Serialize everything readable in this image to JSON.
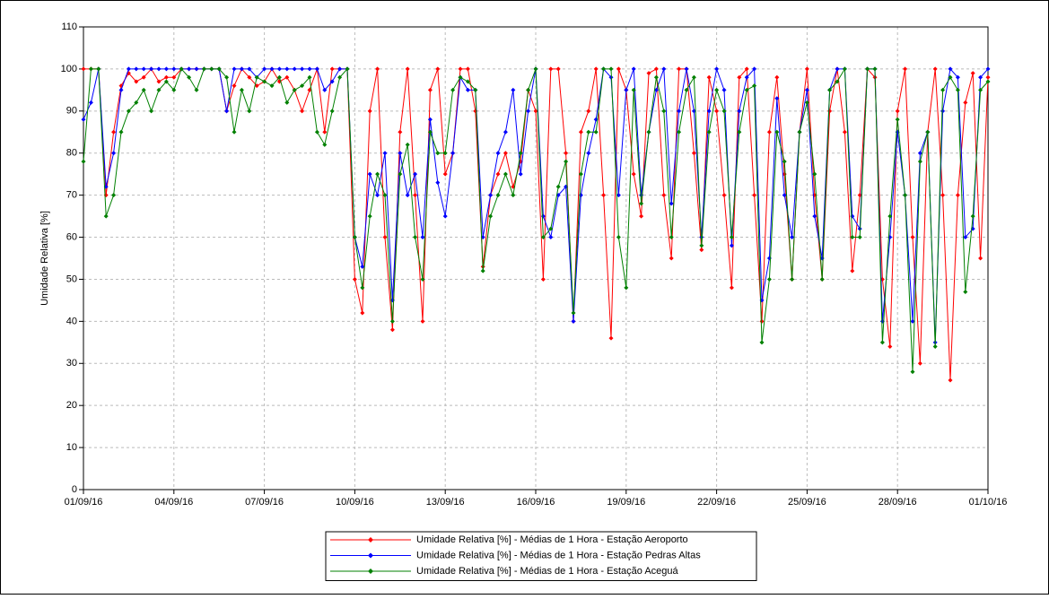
{
  "chart_data": {
    "type": "line",
    "y_label": "Umidade Relativa [%]",
    "xlim": [
      0,
      720
    ],
    "xticks": [
      {
        "value": 0,
        "label": "01/09/16"
      },
      {
        "value": 72,
        "label": "04/09/16"
      },
      {
        "value": 144,
        "label": "07/09/16"
      },
      {
        "value": 216,
        "label": "10/09/16"
      },
      {
        "value": 288,
        "label": "13/09/16"
      },
      {
        "value": 360,
        "label": "16/09/16"
      },
      {
        "value": 432,
        "label": "19/09/16"
      },
      {
        "value": 504,
        "label": "22/09/16"
      },
      {
        "value": 576,
        "label": "25/09/16"
      },
      {
        "value": 648,
        "label": "28/09/16"
      },
      {
        "value": 720,
        "label": "01/10/16"
      }
    ],
    "ylim": [
      0,
      110
    ],
    "yticks": [
      0,
      10,
      20,
      30,
      40,
      50,
      60,
      70,
      80,
      90,
      100,
      110
    ],
    "grid": true,
    "legend": "bottom",
    "x": [
      0,
      6,
      12,
      18,
      24,
      30,
      36,
      42,
      48,
      54,
      60,
      66,
      72,
      78,
      84,
      90,
      96,
      102,
      108,
      114,
      120,
      126,
      132,
      138,
      144,
      150,
      156,
      162,
      168,
      174,
      180,
      186,
      192,
      198,
      204,
      210,
      216,
      222,
      228,
      234,
      240,
      246,
      252,
      258,
      264,
      270,
      276,
      282,
      288,
      294,
      300,
      306,
      312,
      318,
      324,
      330,
      336,
      342,
      348,
      354,
      360,
      366,
      372,
      378,
      384,
      390,
      396,
      402,
      408,
      414,
      420,
      426,
      432,
      438,
      444,
      450,
      456,
      462,
      468,
      474,
      480,
      486,
      492,
      498,
      504,
      510,
      516,
      522,
      528,
      534,
      540,
      546,
      552,
      558,
      564,
      570,
      576,
      582,
      588,
      594,
      600,
      606,
      612,
      618,
      624,
      630,
      636,
      642,
      648,
      654,
      660,
      666,
      672,
      678,
      684,
      690,
      696,
      702,
      708,
      714,
      720
    ],
    "series": [
      {
        "name": "Umidade Relativa [%] - Médias de 1 Hora - Estação Aeroporto",
        "color": "#ff0000",
        "values": [
          100,
          100,
          100,
          70,
          85,
          96,
          99,
          97,
          98,
          100,
          97,
          98,
          98,
          100,
          100,
          100,
          100,
          100,
          100,
          90,
          96,
          100,
          98,
          96,
          97,
          100,
          97,
          98,
          95,
          90,
          95,
          100,
          85,
          100,
          100,
          100,
          50,
          42,
          90,
          100,
          60,
          38,
          85,
          100,
          70,
          40,
          95,
          100,
          75,
          80,
          100,
          100,
          90,
          53,
          70,
          75,
          80,
          72,
          78,
          95,
          90,
          50,
          100,
          100,
          80,
          40,
          85,
          90,
          100,
          70,
          36,
          100,
          95,
          75,
          65,
          99,
          100,
          70,
          55,
          100,
          100,
          80,
          57,
          98,
          90,
          70,
          48,
          98,
          100,
          70,
          40,
          85,
          98,
          75,
          50,
          85,
          100,
          70,
          50,
          90,
          100,
          85,
          52,
          70,
          100,
          98,
          50,
          34,
          90,
          100,
          60,
          30,
          85,
          100,
          70,
          26,
          70,
          92,
          99,
          55,
          98
        ]
      },
      {
        "name": "Umidade Relativa [%] - Médias de 1 Hora - Estação Pedras Altas",
        "color": "#0000ff",
        "values": [
          88,
          92,
          100,
          72,
          80,
          95,
          100,
          100,
          100,
          100,
          100,
          100,
          100,
          100,
          100,
          100,
          100,
          100,
          100,
          90,
          100,
          100,
          100,
          98,
          100,
          100,
          100,
          100,
          100,
          100,
          100,
          100,
          95,
          97,
          100,
          100,
          60,
          53,
          75,
          70,
          80,
          45,
          80,
          70,
          75,
          60,
          88,
          73,
          65,
          80,
          98,
          95,
          95,
          60,
          70,
          80,
          85,
          95,
          75,
          90,
          100,
          65,
          60,
          70,
          72,
          40,
          70,
          80,
          88,
          100,
          98,
          70,
          95,
          100,
          70,
          85,
          95,
          100,
          68,
          90,
          100,
          90,
          60,
          90,
          100,
          95,
          58,
          90,
          98,
          100,
          45,
          55,
          93,
          70,
          60,
          85,
          95,
          65,
          55,
          95,
          100,
          100,
          65,
          62,
          100,
          100,
          40,
          60,
          85,
          70,
          40,
          80,
          85,
          35,
          90,
          100,
          98,
          60,
          62,
          98,
          100
        ]
      },
      {
        "name": "Umidade Relativa [%] - Médias de 1 Hora - Estação Aceguá",
        "color": "#008000",
        "values": [
          78,
          100,
          100,
          65,
          70,
          85,
          90,
          92,
          95,
          90,
          95,
          97,
          95,
          100,
          98,
          95,
          100,
          100,
          100,
          98,
          85,
          95,
          90,
          98,
          97,
          96,
          98,
          92,
          95,
          96,
          98,
          85,
          82,
          90,
          98,
          100,
          60,
          48,
          65,
          75,
          70,
          40,
          75,
          82,
          60,
          50,
          85,
          80,
          80,
          95,
          98,
          97,
          95,
          52,
          65,
          70,
          75,
          70,
          80,
          95,
          100,
          60,
          62,
          72,
          78,
          42,
          75,
          85,
          85,
          100,
          100,
          60,
          48,
          95,
          68,
          85,
          98,
          90,
          60,
          85,
          95,
          98,
          58,
          85,
          95,
          90,
          60,
          85,
          95,
          96,
          35,
          50,
          85,
          78,
          50,
          85,
          92,
          75,
          50,
          95,
          97,
          100,
          60,
          60,
          100,
          100,
          35,
          65,
          88,
          70,
          28,
          78,
          85,
          34,
          95,
          98,
          95,
          47,
          65,
          95,
          97
        ]
      }
    ]
  }
}
